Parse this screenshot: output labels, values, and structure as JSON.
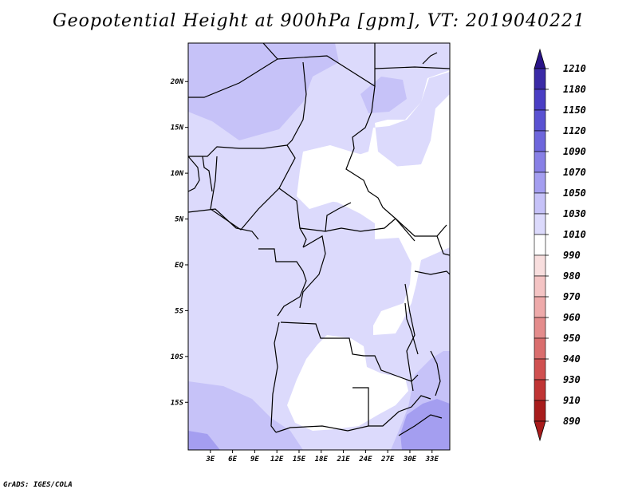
{
  "title": "Geopotential Height at 900hPa [gpm], VT: 2019040221",
  "credit": "GrADS: IGES/COLA",
  "map": {
    "lon_labels": [
      "3E",
      "6E",
      "9E",
      "12E",
      "15E",
      "18E",
      "21E",
      "24E",
      "27E",
      "30E",
      "33E"
    ],
    "lat_labels": [
      "20N",
      "15N",
      "10N",
      "5N",
      "EQ",
      "5S",
      "10S",
      "15S"
    ],
    "lon_values": [
      3,
      6,
      9,
      12,
      15,
      18,
      21,
      24,
      27,
      30,
      33
    ],
    "lat_values": [
      20,
      15,
      10,
      5,
      0,
      -5,
      -10,
      -15
    ]
  },
  "colorbar": {
    "labels": [
      "1210",
      "1180",
      "1150",
      "1120",
      "1090",
      "1070",
      "1050",
      "1030",
      "1010",
      "990",
      "980",
      "970",
      "960",
      "950",
      "940",
      "930",
      "910",
      "890"
    ],
    "colors": [
      "#2a1488",
      "#3a2aa6",
      "#4a3ec4",
      "#5a52d2",
      "#6e66dc",
      "#8880e6",
      "#a49ef0",
      "#c6c2f8",
      "#dcdafc",
      "#ffffff",
      "#f8dede",
      "#f4c4c4",
      "#eeaaaa",
      "#e48c8c",
      "#da6e6e",
      "#d05050",
      "#c03434",
      "#a81c1c"
    ]
  },
  "fill_colors": {
    "light": "#dcdafc",
    "medium": "#c6c2f8",
    "strong": "#a49ef0",
    "stronger": "#8880e6",
    "white": "#ffffff"
  }
}
